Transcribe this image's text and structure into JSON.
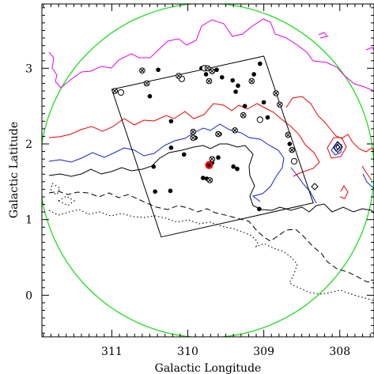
{
  "chart_data": {
    "type": "scatter",
    "title": "",
    "xlabel": "Galactic Longitude",
    "ylabel": "Galactic Latitude",
    "xlim": [
      311.92,
      307.55
    ],
    "ylim": [
      -0.55,
      3.85
    ],
    "x_ticks": [
      311,
      310,
      309,
      308
    ],
    "y_ticks": [
      0,
      1,
      2,
      3
    ],
    "x_minor_step": 0.1,
    "y_minor_step": 0.1,
    "grid": false,
    "legend": "none",
    "colors": {
      "circle": "#22dd22",
      "magenta_contour": "#e600e6",
      "red_contour": "#ee0000",
      "blue_contour": "#1122dd",
      "black_contour": "#000000",
      "center_marker": "#ee0000"
    },
    "survey_circle": {
      "center": [
        309.75,
        1.65
      ],
      "radius_deg": 2.2
    },
    "survey_field": {
      "corners": [
        [
          311.0,
          2.72
        ],
        [
          309.0,
          3.16
        ],
        [
          308.35,
          1.22
        ],
        [
          310.35,
          0.77
        ]
      ]
    },
    "center_marker": {
      "x": 309.72,
      "y": 1.72
    },
    "series": [
      {
        "marker": "filled-circle",
        "points": [
          [
            310.5,
            2.63
          ],
          [
            310.39,
            2.98
          ],
          [
            309.82,
            3.0
          ],
          [
            309.76,
            3.0
          ],
          [
            309.76,
            2.92
          ],
          [
            309.62,
            2.98
          ],
          [
            309.55,
            2.88
          ],
          [
            309.41,
            2.84
          ],
          [
            309.34,
            2.77
          ],
          [
            309.37,
            2.69
          ],
          [
            309.05,
            3.06
          ],
          [
            309.13,
            2.92
          ],
          [
            309.25,
            2.5
          ],
          [
            309.0,
            2.55
          ],
          [
            308.95,
            2.35
          ],
          [
            310.22,
            2.3
          ],
          [
            309.9,
            2.08
          ],
          [
            309.58,
            2.13
          ],
          [
            310.22,
            1.95
          ],
          [
            310.05,
            1.86
          ],
          [
            309.6,
            1.82
          ],
          [
            309.4,
            1.7
          ],
          [
            309.68,
            1.75
          ],
          [
            309.35,
            1.67
          ],
          [
            309.8,
            1.55
          ],
          [
            309.75,
            1.54
          ],
          [
            310.45,
            1.7
          ],
          [
            310.23,
            1.38
          ],
          [
            310.43,
            1.37
          ],
          [
            309.06,
            1.14
          ],
          [
            308.66,
            2.0
          ]
        ]
      },
      {
        "marker": "open-circle",
        "points": [
          [
            310.88,
            2.68
          ],
          [
            310.08,
            2.86
          ],
          [
            309.78,
            3.0
          ],
          [
            309.05,
            2.32
          ],
          [
            308.6,
            1.77
          ]
        ]
      },
      {
        "marker": "crossed-circle",
        "points": [
          [
            310.96,
            2.7
          ],
          [
            310.6,
            2.97
          ],
          [
            310.54,
            2.8
          ],
          [
            310.12,
            2.9
          ],
          [
            309.72,
            2.83
          ],
          [
            309.68,
            2.96
          ],
          [
            309.74,
            3.0
          ],
          [
            309.16,
            2.83
          ],
          [
            308.84,
            2.67
          ],
          [
            308.79,
            2.52
          ],
          [
            309.38,
            2.18
          ],
          [
            309.27,
            2.38
          ],
          [
            309.6,
            2.13
          ],
          [
            309.93,
            2.08
          ],
          [
            309.93,
            2.16
          ],
          [
            308.68,
            2.12
          ],
          [
            308.63,
            1.92
          ],
          [
            309.68,
            1.8
          ],
          [
            309.71,
            1.52
          ]
        ]
      }
    ]
  }
}
